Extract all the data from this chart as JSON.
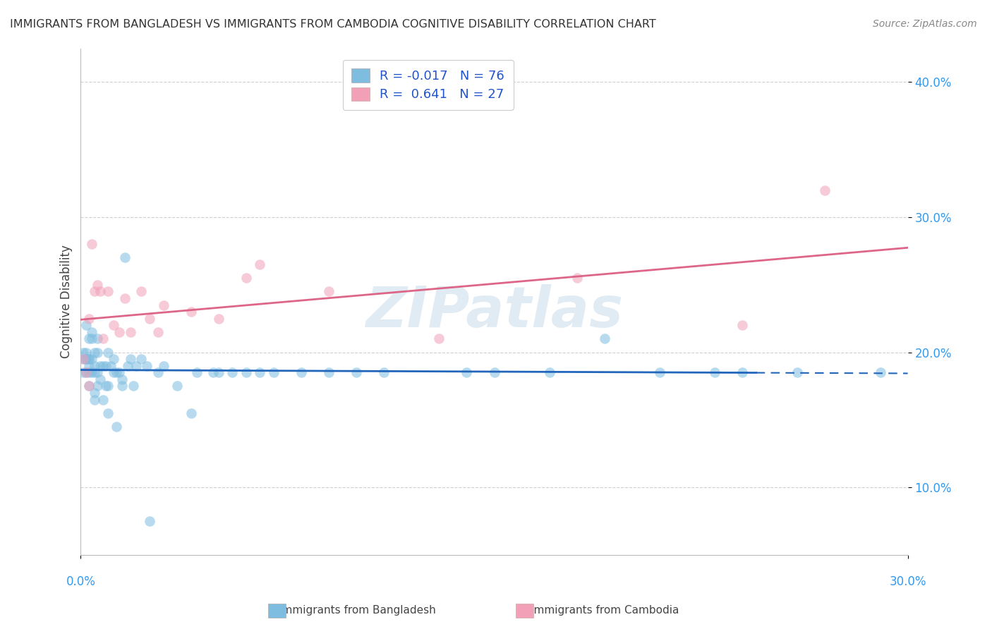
{
  "title": "IMMIGRANTS FROM BANGLADESH VS IMMIGRANTS FROM CAMBODIA COGNITIVE DISABILITY CORRELATION CHART",
  "source": "Source: ZipAtlas.com",
  "ylabel": "Cognitive Disability",
  "xlim": [
    0.0,
    0.3
  ],
  "ylim": [
    0.05,
    0.425
  ],
  "yticks": [
    0.1,
    0.2,
    0.3,
    0.4
  ],
  "ytick_labels": [
    "10.0%",
    "20.0%",
    "30.0%",
    "40.0%"
  ],
  "legend_R1": "R = -0.017",
  "legend_N1": "N = 76",
  "legend_R2": "R =  0.641",
  "legend_N2": "N = 27",
  "color_blue": "#7fbde0",
  "color_pink": "#f2a0b8",
  "line_blue": "#2266bb",
  "line_pink": "#dd6688",
  "watermark": "ZIPatlas",
  "bangladesh_x": [
    0.001,
    0.001,
    0.001,
    0.002,
    0.002,
    0.002,
    0.002,
    0.002,
    0.003,
    0.003,
    0.003,
    0.003,
    0.003,
    0.003,
    0.004,
    0.004,
    0.004,
    0.004,
    0.005,
    0.005,
    0.005,
    0.005,
    0.005,
    0.006,
    0.006,
    0.006,
    0.006,
    0.007,
    0.007,
    0.008,
    0.008,
    0.009,
    0.009,
    0.01,
    0.01,
    0.01,
    0.011,
    0.012,
    0.012,
    0.013,
    0.013,
    0.014,
    0.015,
    0.015,
    0.016,
    0.017,
    0.018,
    0.019,
    0.02,
    0.022,
    0.024,
    0.025,
    0.028,
    0.03,
    0.035,
    0.04,
    0.042,
    0.048,
    0.05,
    0.055,
    0.06,
    0.065,
    0.07,
    0.08,
    0.09,
    0.1,
    0.11,
    0.14,
    0.15,
    0.17,
    0.19,
    0.21,
    0.23,
    0.24,
    0.26,
    0.29
  ],
  "bangladesh_y": [
    0.195,
    0.2,
    0.185,
    0.185,
    0.195,
    0.195,
    0.2,
    0.22,
    0.175,
    0.185,
    0.19,
    0.195,
    0.195,
    0.21,
    0.185,
    0.195,
    0.21,
    0.215,
    0.17,
    0.165,
    0.185,
    0.19,
    0.2,
    0.175,
    0.185,
    0.2,
    0.21,
    0.18,
    0.19,
    0.19,
    0.165,
    0.175,
    0.19,
    0.155,
    0.175,
    0.2,
    0.19,
    0.185,
    0.195,
    0.145,
    0.185,
    0.185,
    0.18,
    0.175,
    0.27,
    0.19,
    0.195,
    0.175,
    0.19,
    0.195,
    0.19,
    0.075,
    0.185,
    0.19,
    0.175,
    0.155,
    0.185,
    0.185,
    0.185,
    0.185,
    0.185,
    0.185,
    0.185,
    0.185,
    0.185,
    0.185,
    0.185,
    0.185,
    0.185,
    0.185,
    0.21,
    0.185,
    0.185,
    0.185,
    0.185,
    0.185
  ],
  "cambodia_x": [
    0.001,
    0.002,
    0.003,
    0.003,
    0.004,
    0.005,
    0.006,
    0.007,
    0.008,
    0.01,
    0.012,
    0.014,
    0.016,
    0.018,
    0.022,
    0.025,
    0.028,
    0.03,
    0.04,
    0.05,
    0.06,
    0.065,
    0.09,
    0.13,
    0.18,
    0.24,
    0.27
  ],
  "cambodia_y": [
    0.195,
    0.185,
    0.175,
    0.225,
    0.28,
    0.245,
    0.25,
    0.245,
    0.21,
    0.245,
    0.22,
    0.215,
    0.24,
    0.215,
    0.245,
    0.225,
    0.215,
    0.235,
    0.23,
    0.225,
    0.255,
    0.265,
    0.245,
    0.21,
    0.255,
    0.22,
    0.32
  ],
  "blue_line_solid_end": 0.245,
  "blue_line_dash_start": 0.245
}
